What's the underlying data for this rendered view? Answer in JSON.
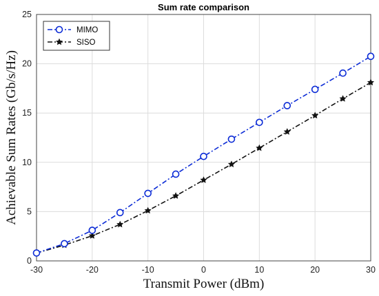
{
  "chart_data": {
    "type": "line",
    "title": "Sum rate comparison",
    "xlabel": "Transmit Power (dBm)",
    "ylabel": "Achievable Sum Rates (Gb/s/Hz)",
    "xlim": [
      -30,
      30
    ],
    "ylim": [
      0,
      25
    ],
    "x": [
      -30,
      -25,
      -20,
      -15,
      -10,
      -5,
      0,
      5,
      10,
      15,
      20,
      25,
      30
    ],
    "xticks": [
      -30,
      -20,
      -10,
      0,
      10,
      20,
      30
    ],
    "yticks": [
      0,
      5,
      10,
      15,
      20,
      25
    ],
    "grid": true,
    "legend_position": "top-left",
    "series": [
      {
        "name": "MIMO",
        "color": "#0b2bd6",
        "line_style": "dash-dot",
        "marker": "open-circle",
        "values": [
          0.8,
          1.75,
          3.1,
          4.9,
          6.85,
          8.8,
          10.6,
          12.35,
          14.05,
          15.75,
          17.4,
          19.05,
          20.75
        ]
      },
      {
        "name": "SISO",
        "color": "#111111",
        "line_style": "dash-dot",
        "marker": "filled-star",
        "values": [
          0.8,
          1.6,
          2.55,
          3.7,
          5.1,
          6.6,
          8.2,
          9.8,
          11.45,
          13.1,
          14.75,
          16.45,
          18.1
        ]
      }
    ]
  }
}
